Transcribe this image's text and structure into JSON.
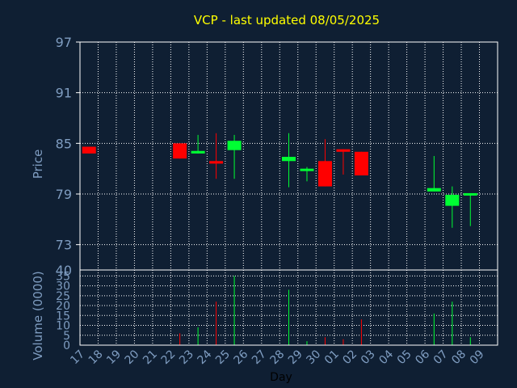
{
  "chart_data": {
    "type": "candlestick",
    "title": "VCP - last updated 08/05/2025",
    "xlabel": "Day",
    "colors": {
      "background": "#0f1f33",
      "title": "#ffff00",
      "up": "#00ff33",
      "down": "#ff0000",
      "grid": "#ffffff",
      "text": "#7f9dc1"
    },
    "x_ticks": [
      "17",
      "18",
      "19",
      "20",
      "21",
      "22",
      "23",
      "24",
      "25",
      "26",
      "27",
      "28",
      "29",
      "30",
      "01",
      "02",
      "03",
      "04",
      "05",
      "06",
      "07",
      "08",
      "09"
    ],
    "price_panel": {
      "ylabel": "Price",
      "ylim": [
        70,
        97
      ],
      "ticks": [
        97,
        91,
        85,
        79,
        73
      ],
      "bottom_label": "40",
      "grid": true
    },
    "volume_panel": {
      "ylabel": "Volume (0000)",
      "ylim": [
        0,
        38
      ],
      "ticks": [
        35,
        30,
        25,
        20,
        15,
        10,
        5,
        0
      ],
      "grid": true
    },
    "candles": [
      {
        "day": "17",
        "open": 84.6,
        "close": 83.8,
        "high": 84.6,
        "low": 83.8,
        "volume": 0
      },
      {
        "day": "22",
        "open": 85.0,
        "close": 83.2,
        "high": 85.0,
        "low": 83.2,
        "volume": 6
      },
      {
        "day": "23",
        "open": 83.8,
        "close": 84.1,
        "high": 86.0,
        "low": 83.8,
        "volume": 9
      },
      {
        "day": "24",
        "open": 82.9,
        "close": 82.6,
        "high": 86.2,
        "low": 80.8,
        "volume": 22
      },
      {
        "day": "25",
        "open": 84.2,
        "close": 85.3,
        "high": 86.0,
        "low": 80.8,
        "volume": 35
      },
      {
        "day": "28",
        "open": 82.9,
        "close": 83.4,
        "high": 86.2,
        "low": 79.8,
        "volume": 28
      },
      {
        "day": "29",
        "open": 81.8,
        "close": 82.0,
        "high": 82.2,
        "low": 80.5,
        "volume": 2
      },
      {
        "day": "30",
        "open": 82.9,
        "close": 79.9,
        "high": 85.5,
        "low": 79.9,
        "volume": 4
      },
      {
        "day": "01",
        "open": 84.3,
        "close": 84.0,
        "high": 84.3,
        "low": 81.3,
        "volume": 3
      },
      {
        "day": "02",
        "open": 84.0,
        "close": 81.2,
        "high": 84.0,
        "low": 81.2,
        "volume": 13
      },
      {
        "day": "06",
        "open": 79.3,
        "close": 79.7,
        "high": 83.5,
        "low": 79.3,
        "volume": 16
      },
      {
        "day": "07",
        "open": 77.6,
        "close": 78.9,
        "high": 79.9,
        "low": 75.0,
        "volume": 22
      },
      {
        "day": "08",
        "open": 78.9,
        "close": 79.1,
        "high": 79.1,
        "low": 75.2,
        "volume": 4
      }
    ]
  }
}
